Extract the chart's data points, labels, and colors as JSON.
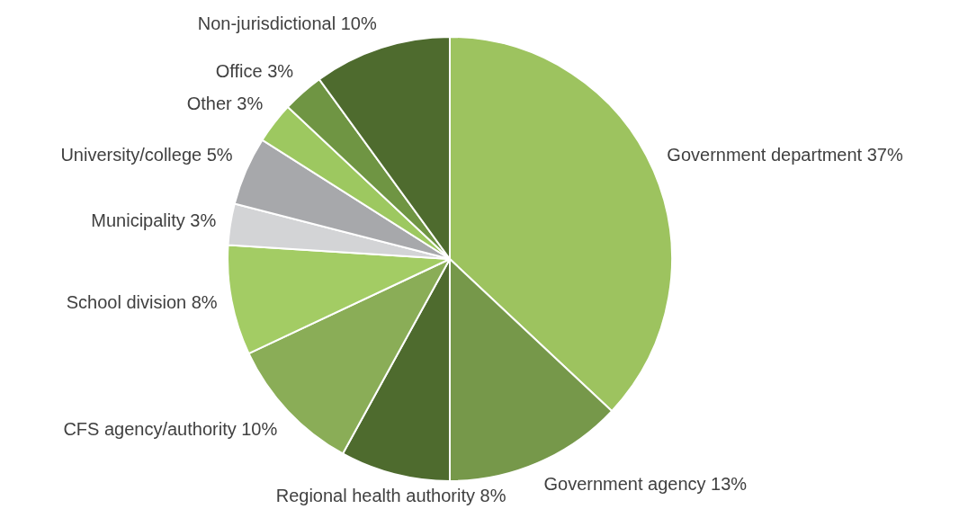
{
  "chart_data": {
    "type": "pie",
    "categories": [
      "Government department",
      "Government agency",
      "Regional health authority",
      "CFS agency/authority",
      "School division",
      "Municipality",
      "University/college",
      "Other",
      "Office",
      "Non-jurisdictional"
    ],
    "values": [
      37,
      13,
      8,
      10,
      8,
      3,
      5,
      3,
      3,
      10
    ],
    "value_labels": [
      "37%",
      "13%",
      "8%",
      "10%",
      "8%",
      "3%",
      "5%",
      "3%",
      "3%",
      "10%"
    ],
    "colors": [
      "#9dc35f",
      "#76984a",
      "#4e6b2e",
      "#8aad57",
      "#a3cc64",
      "#d3d4d6",
      "#a7a8ab",
      "#9dc860",
      "#6f9543",
      "#4e6b2e"
    ],
    "legend": false
  }
}
